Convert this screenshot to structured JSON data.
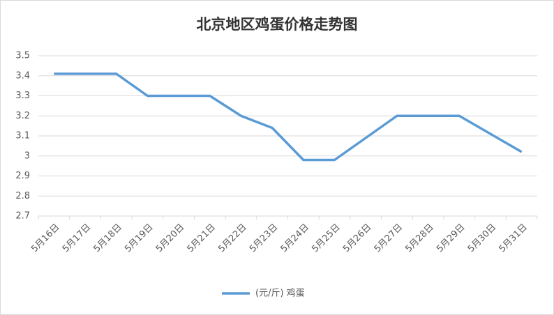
{
  "chart_data": {
    "type": "line",
    "title": "北京地区鸡蛋价格走势图",
    "categories": [
      "5月16日",
      "5月17日",
      "5月18日",
      "5月19日",
      "5月20日",
      "5月21日",
      "5月22日",
      "5月23日",
      "5月24日",
      "5月25日",
      "5月26日",
      "5月27日",
      "5月28日",
      "5月29日",
      "5月30日",
      "5月31日"
    ],
    "series": [
      {
        "name": "(元/斤) 鸡蛋",
        "color": "#5b9bd5",
        "values": [
          3.41,
          3.41,
          3.41,
          3.3,
          3.3,
          3.3,
          3.2,
          3.14,
          2.98,
          2.98,
          3.09,
          3.2,
          3.2,
          3.2,
          3.11,
          3.02
        ]
      }
    ],
    "ylim": [
      2.7,
      3.5
    ],
    "yticks": [
      2.7,
      2.8,
      2.9,
      3,
      3.1,
      3.2,
      3.3,
      3.4,
      3.5
    ],
    "grid": true,
    "legend": "bottom"
  }
}
